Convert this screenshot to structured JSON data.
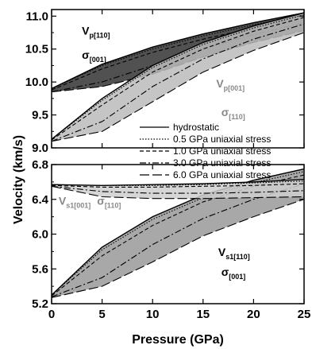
{
  "chart_data": {
    "type": "line",
    "xlabel": "Pressure (GPa)",
    "ylabel": "Velocity (km/s)",
    "xlim": [
      0,
      25
    ],
    "x_ticks": [
      "0",
      "5",
      "10",
      "15",
      "20",
      "25"
    ],
    "grid": false,
    "legend": {
      "placement": "center-right",
      "entries": [
        {
          "label": "hydrostatic",
          "dash": "solid"
        },
        {
          "label": "0.5 GPa uniaxial stress",
          "dash": "dotted"
        },
        {
          "label": "1.0 GPa uniaxial stress",
          "dash": "dashed"
        },
        {
          "label": "3.0 GPa uniaxial stress",
          "dash": "dashdot"
        },
        {
          "label": "6.0 GPa uniaxial stress",
          "dash": "longdash"
        }
      ]
    },
    "panels": [
      {
        "name": "top",
        "ylim": [
          9.0,
          11.1
        ],
        "y_ticks": [
          "9.0",
          "9.5",
          "10.0",
          "10.5",
          "11.0"
        ],
        "groups": [
          {
            "fill": "#333333",
            "label_main": "V",
            "label_sub": "p[110]",
            "label2_main": "σ",
            "label2_sub": "[001]",
            "label_color": "#000000",
            "label_pos": [
              3.0,
              10.72
            ],
            "label2_pos": [
              3.0,
              10.35
            ],
            "x": [
              0,
              5,
              10,
              15,
              20,
              25
            ],
            "lines": [
              {
                "dash": "solid",
                "y": [
                  9.9,
                  10.27,
                  10.53,
                  10.73,
                  10.9,
                  11.05
                ]
              },
              {
                "dash": "dotted",
                "y": [
                  9.9,
                  10.25,
                  10.5,
                  10.7,
                  10.87,
                  11.02
                ]
              },
              {
                "dash": "dashed",
                "y": [
                  9.88,
                  10.2,
                  10.45,
                  10.65,
                  10.82,
                  10.98
                ]
              },
              {
                "dash": "dashdot",
                "y": [
                  9.85,
                  10.0,
                  10.25,
                  10.5,
                  10.72,
                  10.9
                ]
              },
              {
                "dash": "longdash",
                "y": [
                  9.85,
                  9.93,
                  10.12,
                  10.38,
                  10.6,
                  10.78
                ]
              }
            ]
          },
          {
            "fill": "#bbbbbb",
            "label_main": "V",
            "label_sub": "p[001]",
            "label2_main": "σ",
            "label2_sub": "[110]",
            "label_color": "#888888",
            "label_pos": [
              16.3,
              9.92
            ],
            "label2_pos": [
              16.8,
              9.48
            ],
            "x": [
              0,
              5,
              10,
              15,
              20,
              25
            ],
            "lines": [
              {
                "dash": "solid",
                "y": [
                  9.13,
                  9.75,
                  10.25,
                  10.6,
                  10.85,
                  11.05
                ]
              },
              {
                "dash": "dotted",
                "y": [
                  9.13,
                  9.72,
                  10.22,
                  10.57,
                  10.82,
                  11.02
                ]
              },
              {
                "dash": "dashed",
                "y": [
                  9.12,
                  9.65,
                  10.15,
                  10.5,
                  10.77,
                  10.98
                ]
              },
              {
                "dash": "dashdot",
                "y": [
                  9.1,
                  9.4,
                  9.93,
                  10.35,
                  10.65,
                  10.88
                ]
              },
              {
                "dash": "longdash",
                "y": [
                  9.1,
                  9.25,
                  9.7,
                  10.15,
                  10.48,
                  10.75
                ]
              }
            ]
          }
        ]
      },
      {
        "name": "bottom",
        "ylim": [
          5.2,
          6.8
        ],
        "y_ticks": [
          "5.2",
          "5.6",
          "6.0",
          "6.4",
          "6.8"
        ],
        "groups": [
          {
            "fill": "#999999",
            "label_main": "V",
            "label_sub": "s1[110]",
            "label2_main": "σ",
            "label2_sub": "[001]",
            "label_color": "#000000",
            "label_pos": [
              16.5,
              5.75
            ],
            "label2_pos": [
              16.8,
              5.52
            ],
            "x": [
              0,
              5,
              10,
              15,
              20,
              25
            ],
            "lines": [
              {
                "dash": "solid",
                "y": [
                  5.3,
                  5.85,
                  6.2,
                  6.45,
                  6.62,
                  6.75
                ]
              },
              {
                "dash": "dotted",
                "y": [
                  5.3,
                  5.82,
                  6.17,
                  6.42,
                  6.59,
                  6.72
                ]
              },
              {
                "dash": "dashed",
                "y": [
                  5.29,
                  5.75,
                  6.1,
                  6.37,
                  6.55,
                  6.68
                ]
              },
              {
                "dash": "dashdot",
                "y": [
                  5.28,
                  5.5,
                  5.88,
                  6.18,
                  6.4,
                  6.58
                ]
              },
              {
                "dash": "longdash",
                "y": [
                  5.27,
                  5.4,
                  5.68,
                  5.98,
                  6.2,
                  6.4
                ]
              }
            ]
          },
          {
            "fill": "#cfcfcf",
            "label_main": "V",
            "label_sub": "s1[001]",
            "label2_main": " σ",
            "label2_sub": "[110]",
            "label_color": "#888888",
            "label_pos": [
              0.7,
              6.34
            ],
            "label2_pos": [
              4.5,
              6.34
            ],
            "x": [
              0,
              5,
              10,
              15,
              20,
              25
            ],
            "lines": [
              {
                "dash": "solid",
                "y": [
                  6.57,
                  6.56,
                  6.57,
                  6.58,
                  6.6,
                  6.63
                ]
              },
              {
                "dash": "dotted",
                "y": [
                  6.57,
                  6.56,
                  6.56,
                  6.57,
                  6.59,
                  6.61
                ]
              },
              {
                "dash": "dashed",
                "y": [
                  6.56,
                  6.54,
                  6.54,
                  6.55,
                  6.56,
                  6.58
                ]
              },
              {
                "dash": "dashdot",
                "y": [
                  6.55,
                  6.49,
                  6.47,
                  6.47,
                  6.48,
                  6.5
                ]
              },
              {
                "dash": "longdash",
                "y": [
                  6.55,
                  6.43,
                  6.41,
                  6.41,
                  6.42,
                  6.43
                ]
              }
            ]
          }
        ]
      }
    ]
  }
}
